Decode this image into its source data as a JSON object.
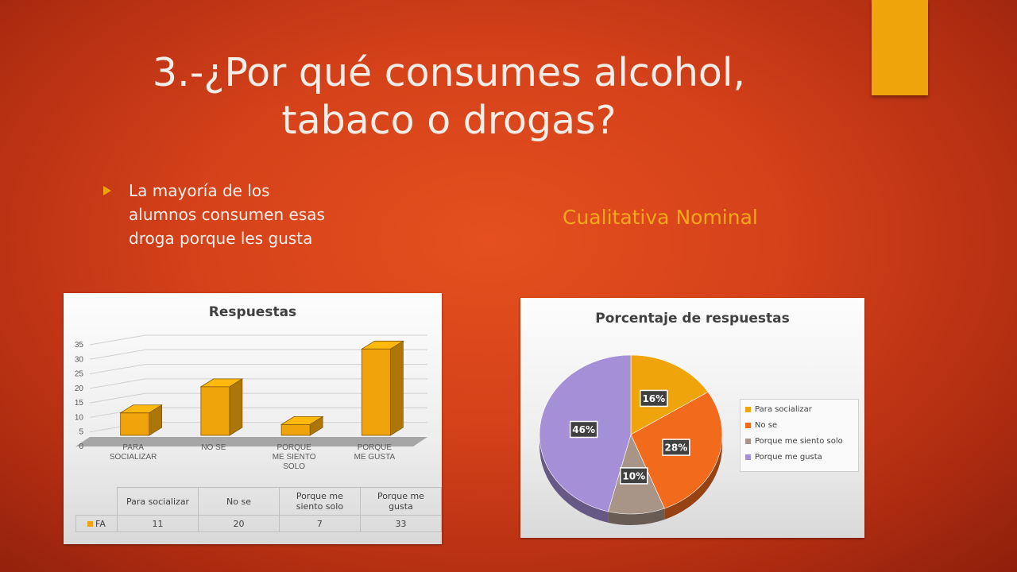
{
  "slide": {
    "title_line1": "3.-¿Por qué consumes alcohol,",
    "title_line2": "tabaco o drogas?",
    "bullet_line1": "La mayoría de los",
    "bullet_line2": "alumnos consumen esas",
    "bullet_line3": "droga porque les gusta",
    "subtitle": "Cualitativa Nominal"
  },
  "colors": {
    "accent": "#f0a40c",
    "background": "#d6421a",
    "subtitle": "#f5a81a"
  },
  "chart_data": [
    {
      "type": "bar",
      "title": "Respuestas",
      "categories": [
        [
          "PARA",
          "SOCIALIZAR"
        ],
        [
          "NO SE"
        ],
        [
          "PORQUE",
          "ME SIENTO",
          "SOLO"
        ],
        [
          "PORQUE",
          "ME GUSTA"
        ]
      ],
      "series": [
        {
          "name": "FA",
          "values": [
            11,
            20,
            7,
            33
          ],
          "color": "#f0a40c"
        }
      ],
      "yticks": [
        "0",
        "5",
        "10",
        "15",
        "20",
        "25",
        "30",
        "35"
      ],
      "ylim": [
        0,
        35
      ],
      "grid": true,
      "data_table": {
        "headers": [
          [
            "Para socializar"
          ],
          [
            "No se"
          ],
          [
            "Porque me",
            "siento solo"
          ],
          [
            "Porque me",
            "gusta"
          ]
        ],
        "row_label": "FA",
        "values": [
          "11",
          "20",
          "7",
          "33"
        ]
      }
    },
    {
      "type": "pie",
      "title": "Porcentaje de respuestas",
      "labels": [
        "Para socializar",
        "No se",
        "Porque me siento solo",
        "Porque me gusta"
      ],
      "values": [
        16,
        28,
        10,
        46
      ],
      "value_labels": [
        "16%",
        "28%",
        "10%",
        "46%"
      ],
      "colors": [
        "#f0a40c",
        "#f26b1d",
        "#a99587",
        "#a58fd6"
      ],
      "legend": "right"
    }
  ]
}
